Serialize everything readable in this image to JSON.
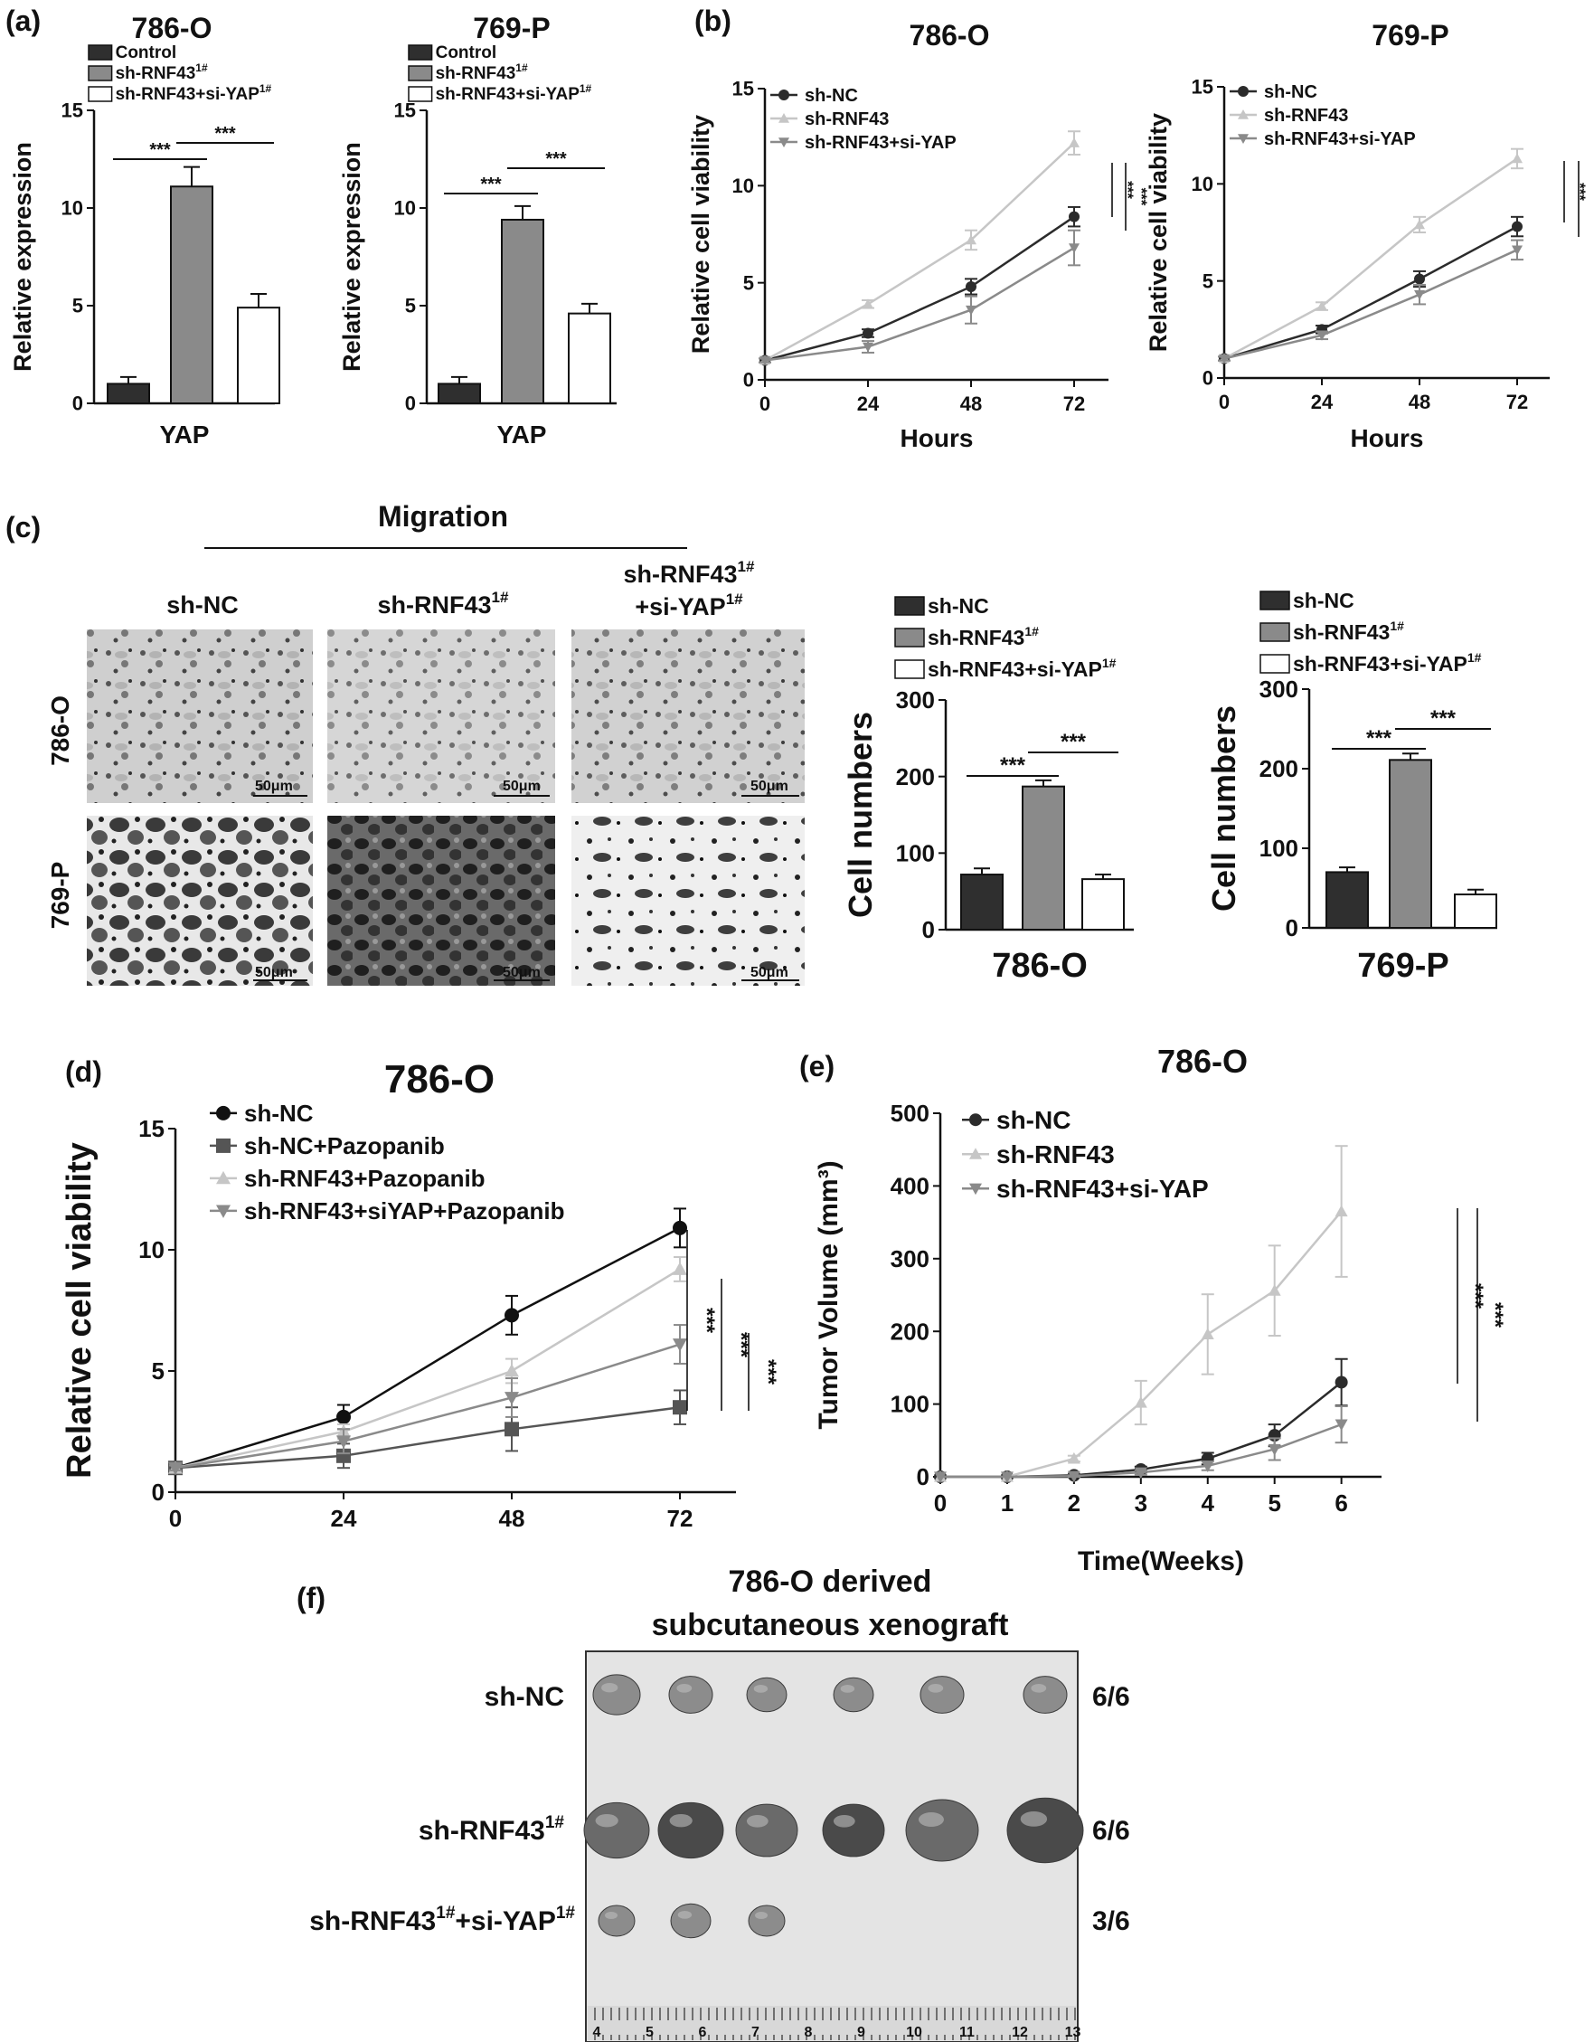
{
  "colors": {
    "dark": "#2f2f2f",
    "mid": "#8a8a8a",
    "light": "#c9c9c9",
    "white": "#ffffff",
    "axis": "#111111"
  },
  "significance": {
    "three": "***",
    "two": "**"
  },
  "chart_data": [
    {
      "id": "a1",
      "panel": "(a)",
      "type": "bar",
      "title": "786-O",
      "ylabel": "Relative expression",
      "xlabel": "YAP",
      "ylim": [
        0,
        15
      ],
      "yticks": [
        0,
        5,
        10,
        15
      ],
      "legend": [
        "Control",
        "sh-RNF43",
        "sh-RNF43+si-YAP"
      ],
      "values": [
        1.0,
        11.1,
        4.9
      ],
      "errors": [
        0.35,
        1.0,
        0.7
      ]
    },
    {
      "id": "a2",
      "type": "bar",
      "title": "769-P",
      "ylabel": "Relative expression",
      "xlabel": "YAP",
      "ylim": [
        0,
        15
      ],
      "yticks": [
        0,
        5,
        10,
        15
      ],
      "legend": [
        "Control",
        "sh-RNF43",
        "sh-RNF43+si-YAP"
      ],
      "values": [
        1.0,
        9.4,
        4.6
      ],
      "errors": [
        0.35,
        0.7,
        0.5
      ]
    },
    {
      "id": "b1",
      "panel": "(b)",
      "type": "line",
      "title": "786-O",
      "ylabel": "Relative cell viability",
      "xlabel": "Hours",
      "x": [
        0,
        24,
        48,
        72
      ],
      "xlim": [
        0,
        80
      ],
      "ylim": [
        0,
        15
      ],
      "yticks": [
        0,
        5,
        10,
        15
      ],
      "series": [
        {
          "name": "sh-NC",
          "values": [
            1.0,
            2.4,
            4.8,
            8.4
          ],
          "errors": [
            0.1,
            0.2,
            0.4,
            0.5
          ]
        },
        {
          "name": "sh-RNF43",
          "values": [
            1.0,
            3.9,
            7.2,
            12.2
          ],
          "errors": [
            0.1,
            0.2,
            0.5,
            0.6
          ]
        },
        {
          "name": "sh-RNF43+si-YAP",
          "values": [
            1.0,
            1.7,
            3.6,
            6.8
          ],
          "errors": [
            0.1,
            0.3,
            0.7,
            0.9
          ]
        }
      ]
    },
    {
      "id": "b2",
      "type": "line",
      "title": "769-P",
      "ylabel": "Relative cell viability",
      "xlabel": "Hours",
      "x": [
        0,
        24,
        48,
        72
      ],
      "xlim": [
        0,
        80
      ],
      "ylim": [
        0,
        15
      ],
      "yticks": [
        0,
        5,
        10,
        15
      ],
      "series": [
        {
          "name": "sh-NC",
          "values": [
            1.0,
            2.5,
            5.1,
            7.8
          ],
          "errors": [
            0.1,
            0.2,
            0.4,
            0.5
          ]
        },
        {
          "name": "sh-RNF43",
          "values": [
            1.0,
            3.7,
            7.9,
            11.3
          ],
          "errors": [
            0.1,
            0.2,
            0.4,
            0.5
          ]
        },
        {
          "name": "sh-RNF43+si-YAP",
          "values": [
            1.0,
            2.2,
            4.3,
            6.6
          ],
          "errors": [
            0.1,
            0.2,
            0.5,
            0.5
          ]
        }
      ]
    },
    {
      "id": "c1",
      "type": "bar",
      "title": "786-O",
      "ylabel": "Cell numbers",
      "ylim": [
        0,
        300
      ],
      "yticks": [
        0,
        100,
        200,
        300
      ],
      "legend": [
        "sh-NC",
        "sh-RNF43",
        "sh-RNF43+si-YAP"
      ],
      "values": [
        72,
        187,
        66
      ],
      "errors": [
        8,
        8,
        6
      ]
    },
    {
      "id": "c2",
      "type": "bar",
      "title": "769-P",
      "ylabel": "Cell numbers",
      "ylim": [
        0,
        300
      ],
      "yticks": [
        0,
        100,
        200,
        300
      ],
      "legend": [
        "sh-NC",
        "sh-RNF43",
        "sh-RNF43+si-YAP"
      ],
      "values": [
        70,
        211,
        42
      ],
      "errors": [
        6,
        8,
        6
      ]
    },
    {
      "id": "d",
      "panel": "(d)",
      "type": "line",
      "title": "786-O",
      "ylabel": "Relative cell viability",
      "x": [
        0,
        24,
        48,
        72
      ],
      "xlim": [
        0,
        80
      ],
      "ylim": [
        0,
        15
      ],
      "yticks": [
        0,
        5,
        10,
        15
      ],
      "series": [
        {
          "name": "sh-NC",
          "values": [
            1.0,
            3.1,
            7.3,
            10.9
          ],
          "errors": [
            0.1,
            0.5,
            0.8,
            0.8
          ]
        },
        {
          "name": "sh-NC+Pazopanib",
          "values": [
            1.0,
            1.5,
            2.6,
            3.5
          ],
          "errors": [
            0.1,
            0.5,
            0.9,
            0.7
          ]
        },
        {
          "name": "sh-RNF43+Pazopanib",
          "values": [
            1.0,
            2.5,
            5.0,
            9.2
          ],
          "errors": [
            0.1,
            0.3,
            0.5,
            0.5
          ]
        },
        {
          "name": "sh-RNF43+siYAP+Pazopanib",
          "values": [
            1.0,
            2.1,
            3.9,
            6.1
          ],
          "errors": [
            0.1,
            0.5,
            0.8,
            0.8
          ]
        }
      ]
    },
    {
      "id": "e",
      "panel": "(e)",
      "type": "line",
      "title": "786-O",
      "ylabel": "Tumor Volume (mm³)",
      "xlabel": "Time(Weeks)",
      "x": [
        0,
        1,
        2,
        3,
        4,
        5,
        6
      ],
      "xlim": [
        0,
        6.6
      ],
      "ylim": [
        0,
        500
      ],
      "yticks": [
        0,
        100,
        200,
        300,
        400,
        500
      ],
      "series": [
        {
          "name": "sh-NC",
          "values": [
            0,
            0,
            2,
            10,
            25,
            57,
            130
          ],
          "errors": [
            0,
            0,
            1,
            4,
            8,
            15,
            32
          ]
        },
        {
          "name": "sh-RNF43",
          "values": [
            0,
            0,
            25,
            102,
            196,
            256,
            365
          ],
          "errors": [
            0,
            0,
            4,
            30,
            55,
            62,
            90
          ]
        },
        {
          "name": "sh-RNF43+si-YAP",
          "values": [
            0,
            0,
            1,
            6,
            15,
            38,
            72
          ],
          "errors": [
            0,
            0,
            1,
            3,
            6,
            15,
            25
          ]
        }
      ]
    }
  ],
  "panel_c": {
    "label": "(c)",
    "migration": "Migration",
    "columns": [
      "sh-NC",
      "sh-RNF43",
      "sh-RNF43",
      "+si-YAP"
    ],
    "rows": [
      "786-O",
      "769-P"
    ],
    "scale": "50μm"
  },
  "panel_f": {
    "label": "(f)",
    "title1": "786-O derived",
    "title2": "subcutaneous xenograft",
    "groups": [
      {
        "name": "sh-NC",
        "sup": "",
        "count": "6/6",
        "tumors": 6
      },
      {
        "name": "sh-RNF43",
        "sup": "1#",
        "count": "6/6",
        "tumors": 6
      },
      {
        "name": "sh-RNF43",
        "sup": "1#",
        "name2": "+si-YAP",
        "sup2": "1#",
        "count": "3/6",
        "tumors": 3
      }
    ],
    "ruler": [
      "4",
      "5",
      "6",
      "7",
      "8",
      "9",
      "10",
      "11",
      "12",
      "13"
    ]
  }
}
